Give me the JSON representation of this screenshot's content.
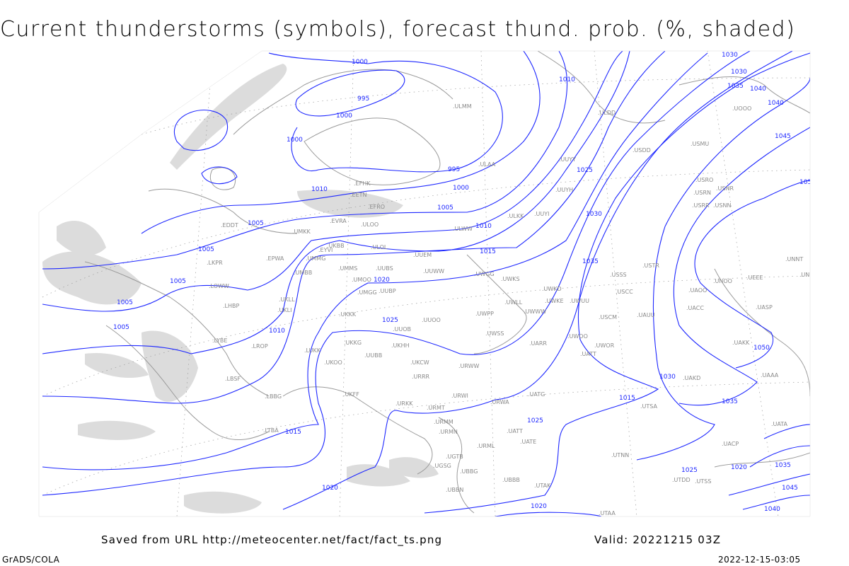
{
  "title": "Current thunderstorms (symbols), forecast thund. prob. (%, shaded)",
  "footer": {
    "saved_from": "Saved from URL http://meteocenter.net/fact/fact_ts.png",
    "valid": "Valid: 20221215 03Z",
    "credit": "GrADS/COLA",
    "timestamp": "2022-12-15-03:05"
  },
  "colors": {
    "isobar": "#1e28ff",
    "station": "#8a8a8a",
    "shading": "#dcdcdc",
    "coast": "#9a9a9a"
  },
  "map": {
    "isobar_labels": [
      "1000",
      "995",
      "1000",
      "1000",
      "995",
      "1000",
      "1005",
      "1005",
      "1010",
      "1015",
      "1020",
      "1025",
      "1030",
      "1035",
      "1040",
      "1045",
      "1050",
      "1025",
      "1030",
      "1035",
      "1040",
      "1045",
      "1050",
      "1005",
      "1005",
      "1005",
      "1005",
      "1010",
      "1010",
      "1015",
      "1015",
      "1020",
      "1020",
      "1025",
      "1030",
      "1035",
      "1040",
      "1010",
      "1015",
      "1020",
      "1025",
      "1030",
      "1035"
    ],
    "stations": [
      "ULMM",
      "ULDD",
      "ULAA",
      "UUYY",
      "UUYH",
      "UUYI",
      "ULKK",
      "ULWW",
      "ULOL",
      "ULOO",
      "EVRA",
      "UMKK",
      "EYVI",
      "UMMG",
      "UMBB",
      "EPWA",
      "UUEM",
      "UMMS",
      "UMOO",
      "UUBS",
      "UUWW",
      "UWGG",
      "UWKS",
      "UMGG",
      "UUBP",
      "UKKK",
      "UWPP",
      "UUOO",
      "UUOB",
      "UKHH",
      "UWSS",
      "UKKG",
      "UKOO",
      "LUKK",
      "UKFF",
      "URKK",
      "URRR",
      "UKCW",
      "URWW",
      "URWI",
      "URMT",
      "URMM",
      "URMN",
      "URWA",
      "UATG",
      "UATT",
      "UATE",
      "URML",
      "UGTB",
      "UBBG",
      "UBBN",
      "UBBB",
      "UTAK",
      "UTAA",
      "UTNN",
      "UWOO",
      "UARR",
      "UATT",
      "UWOR",
      "USCM",
      "UAUU",
      "USCC",
      "USSS",
      "USTR",
      "USNN",
      "USRR",
      "USRN",
      "USNR",
      "USRO",
      "USMU",
      "USDD",
      "UOOO",
      "UWKD",
      "UWKE",
      "UWUU",
      "UWWW",
      "UWLL",
      "UAKD",
      "UACC",
      "UAOO",
      "UNOO",
      "UASP",
      "UAKK",
      "UNNT",
      "UNBB",
      "UTSS",
      "UTDD",
      "LBSF",
      "LBBG",
      "LTBA",
      "LKPR",
      "EDDT",
      "LHBP",
      "LYBE",
      "LOWW",
      "UKLL",
      "UKLI",
      "UKBB",
      "EFHK",
      "EETN",
      "UUBB",
      "UGSG",
      "UTSA",
      "UAAA",
      "UATA",
      "UACP",
      "LROP",
      "EFRO",
      "UEEE"
    ]
  }
}
